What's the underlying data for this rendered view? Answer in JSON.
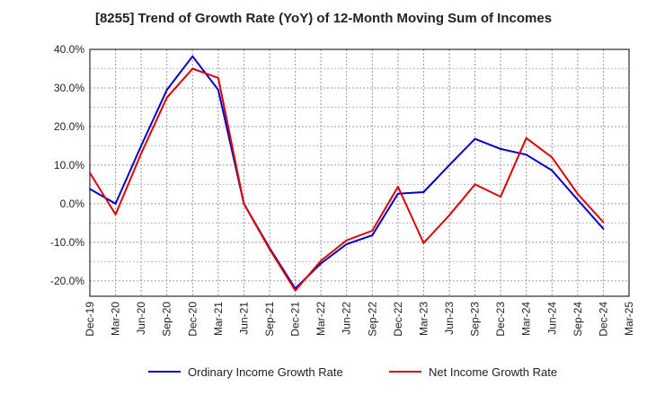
{
  "chart_data": {
    "type": "line",
    "title": "[8255]  Trend of Growth Rate (YoY) of 12-Month Moving Sum of Incomes",
    "xlabel": "",
    "ylabel": "",
    "x": [
      "Dec-19",
      "Mar-20",
      "Jun-20",
      "Sep-20",
      "Dec-20",
      "Mar-21",
      "Jun-21",
      "Sep-21",
      "Dec-21",
      "Mar-22",
      "Jun-22",
      "Sep-22",
      "Dec-22",
      "Mar-23",
      "Jun-23",
      "Sep-23",
      "Dec-23",
      "Mar-24",
      "Jun-24",
      "Sep-24",
      "Dec-24",
      "Mar-25"
    ],
    "ylim": [
      -24,
      40
    ],
    "yticks": [
      40,
      30,
      20,
      10,
      0,
      -10,
      -20
    ],
    "ytick_labels": [
      "40.0%",
      "30.0%",
      "20.0%",
      "10.0%",
      "0.0%",
      "-10.0%",
      "-20.0%"
    ],
    "grid": true,
    "legend_position": "bottom",
    "series": [
      {
        "name": "Ordinary Income Growth Rate",
        "color": "#0000cc",
        "values": [
          3.8,
          0.0,
          15.0,
          29.5,
          38.2,
          29.5,
          0.0,
          -11.5,
          -22.0,
          -15.5,
          -10.5,
          -8.2,
          2.6,
          3.0,
          10.0,
          16.8,
          14.2,
          12.7,
          8.6,
          1.0,
          -6.5,
          null
        ]
      },
      {
        "name": "Net Income Growth Rate",
        "color": "#dd0000",
        "values": [
          8.0,
          -2.8,
          13.0,
          27.5,
          35.0,
          32.6,
          0.0,
          -11.8,
          -22.5,
          -14.8,
          -9.5,
          -7.0,
          4.4,
          -10.2,
          -3.0,
          5.0,
          1.8,
          17.0,
          12.0,
          2.5,
          -4.8,
          null
        ]
      }
    ]
  }
}
